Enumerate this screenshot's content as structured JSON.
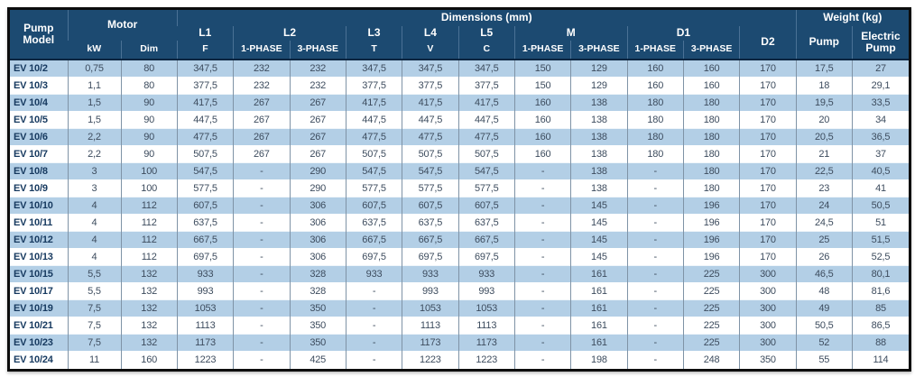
{
  "colors": {
    "header_bg": "#1c4a71",
    "stripe_blue": "#b3cfe6",
    "stripe_white": "#ffffff",
    "model_text": "#16395f",
    "value_text": "#3d4c5e",
    "outer_border": "#0d0d0d",
    "grid_line": "#7f93a6"
  },
  "table": {
    "header": {
      "pump_model": "Pump Model",
      "motor": "Motor",
      "dimensions": "Dimensions (mm)",
      "weight": "Weight (kg)",
      "kw": "kW",
      "dim": "Dim",
      "l1": "L1",
      "l2": "L2",
      "l3": "L3",
      "l4": "L4",
      "l5": "L5",
      "m": "M",
      "d1": "D1",
      "d2": "D2",
      "f": "F",
      "t": "T",
      "v": "V",
      "c": "C",
      "one_phase": "1-PHASE",
      "three_phase": "3-PHASE",
      "pump": "Pump",
      "electric_pump": "Electric Pump"
    },
    "rows": [
      {
        "model": "EV 10/2",
        "values": [
          "0,75",
          "80",
          "347,5",
          "232",
          "232",
          "347,5",
          "347,5",
          "347,5",
          "150",
          "129",
          "160",
          "160",
          "170",
          "17,5",
          "27"
        ]
      },
      {
        "model": "EV 10/3",
        "values": [
          "1,1",
          "80",
          "377,5",
          "232",
          "232",
          "377,5",
          "377,5",
          "377,5",
          "150",
          "129",
          "160",
          "160",
          "170",
          "18",
          "29,1"
        ]
      },
      {
        "model": "EV 10/4",
        "values": [
          "1,5",
          "90",
          "417,5",
          "267",
          "267",
          "417,5",
          "417,5",
          "417,5",
          "160",
          "138",
          "180",
          "180",
          "170",
          "19,5",
          "33,5"
        ]
      },
      {
        "model": "EV 10/5",
        "values": [
          "1,5",
          "90",
          "447,5",
          "267",
          "267",
          "447,5",
          "447,5",
          "447,5",
          "160",
          "138",
          "180",
          "180",
          "170",
          "20",
          "34"
        ]
      },
      {
        "model": "EV 10/6",
        "values": [
          "2,2",
          "90",
          "477,5",
          "267",
          "267",
          "477,5",
          "477,5",
          "477,5",
          "160",
          "138",
          "180",
          "180",
          "170",
          "20,5",
          "36,5"
        ]
      },
      {
        "model": "EV 10/7",
        "values": [
          "2,2",
          "90",
          "507,5",
          "267",
          "267",
          "507,5",
          "507,5",
          "507,5",
          "160",
          "138",
          "180",
          "180",
          "170",
          "21",
          "37"
        ]
      },
      {
        "model": "EV 10/8",
        "values": [
          "3",
          "100",
          "547,5",
          "-",
          "290",
          "547,5",
          "547,5",
          "547,5",
          "-",
          "138",
          "-",
          "180",
          "170",
          "22,5",
          "40,5"
        ]
      },
      {
        "model": "EV 10/9",
        "values": [
          "3",
          "100",
          "577,5",
          "-",
          "290",
          "577,5",
          "577,5",
          "577,5",
          "-",
          "138",
          "-",
          "180",
          "170",
          "23",
          "41"
        ]
      },
      {
        "model": "EV 10/10",
        "values": [
          "4",
          "112",
          "607,5",
          "-",
          "306",
          "607,5",
          "607,5",
          "607,5",
          "-",
          "145",
          "-",
          "196",
          "170",
          "24",
          "50,5"
        ]
      },
      {
        "model": "EV 10/11",
        "values": [
          "4",
          "112",
          "637,5",
          "-",
          "306",
          "637,5",
          "637,5",
          "637,5",
          "-",
          "145",
          "-",
          "196",
          "170",
          "24,5",
          "51"
        ]
      },
      {
        "model": "EV 10/12",
        "values": [
          "4",
          "112",
          "667,5",
          "-",
          "306",
          "667,5",
          "667,5",
          "667,5",
          "-",
          "145",
          "-",
          "196",
          "170",
          "25",
          "51,5"
        ]
      },
      {
        "model": "EV 10/13",
        "values": [
          "4",
          "112",
          "697,5",
          "-",
          "306",
          "697,5",
          "697,5",
          "697,5",
          "-",
          "145",
          "-",
          "196",
          "170",
          "26",
          "52,5"
        ]
      },
      {
        "model": "EV 10/15",
        "values": [
          "5,5",
          "132",
          "933",
          "-",
          "328",
          "933",
          "933",
          "933",
          "-",
          "161",
          "-",
          "225",
          "300",
          "46,5",
          "80,1"
        ]
      },
      {
        "model": "EV 10/17",
        "values": [
          "5,5",
          "132",
          "993",
          "-",
          "328",
          "-",
          "993",
          "993",
          "-",
          "161",
          "-",
          "225",
          "300",
          "48",
          "81,6"
        ]
      },
      {
        "model": "EV 10/19",
        "values": [
          "7,5",
          "132",
          "1053",
          "-",
          "350",
          "-",
          "1053",
          "1053",
          "-",
          "161",
          "-",
          "225",
          "300",
          "49",
          "85"
        ]
      },
      {
        "model": "EV 10/21",
        "values": [
          "7,5",
          "132",
          "1113",
          "-",
          "350",
          "-",
          "1113",
          "1113",
          "-",
          "161",
          "-",
          "225",
          "300",
          "50,5",
          "86,5"
        ]
      },
      {
        "model": "EV 10/23",
        "values": [
          "7,5",
          "132",
          "1173",
          "-",
          "350",
          "-",
          "1173",
          "1173",
          "-",
          "161",
          "-",
          "225",
          "300",
          "52",
          "88"
        ]
      },
      {
        "model": "EV 10/24",
        "values": [
          "11",
          "160",
          "1223",
          "-",
          "425",
          "-",
          "1223",
          "1223",
          "-",
          "198",
          "-",
          "248",
          "350",
          "55",
          "114"
        ]
      }
    ]
  }
}
